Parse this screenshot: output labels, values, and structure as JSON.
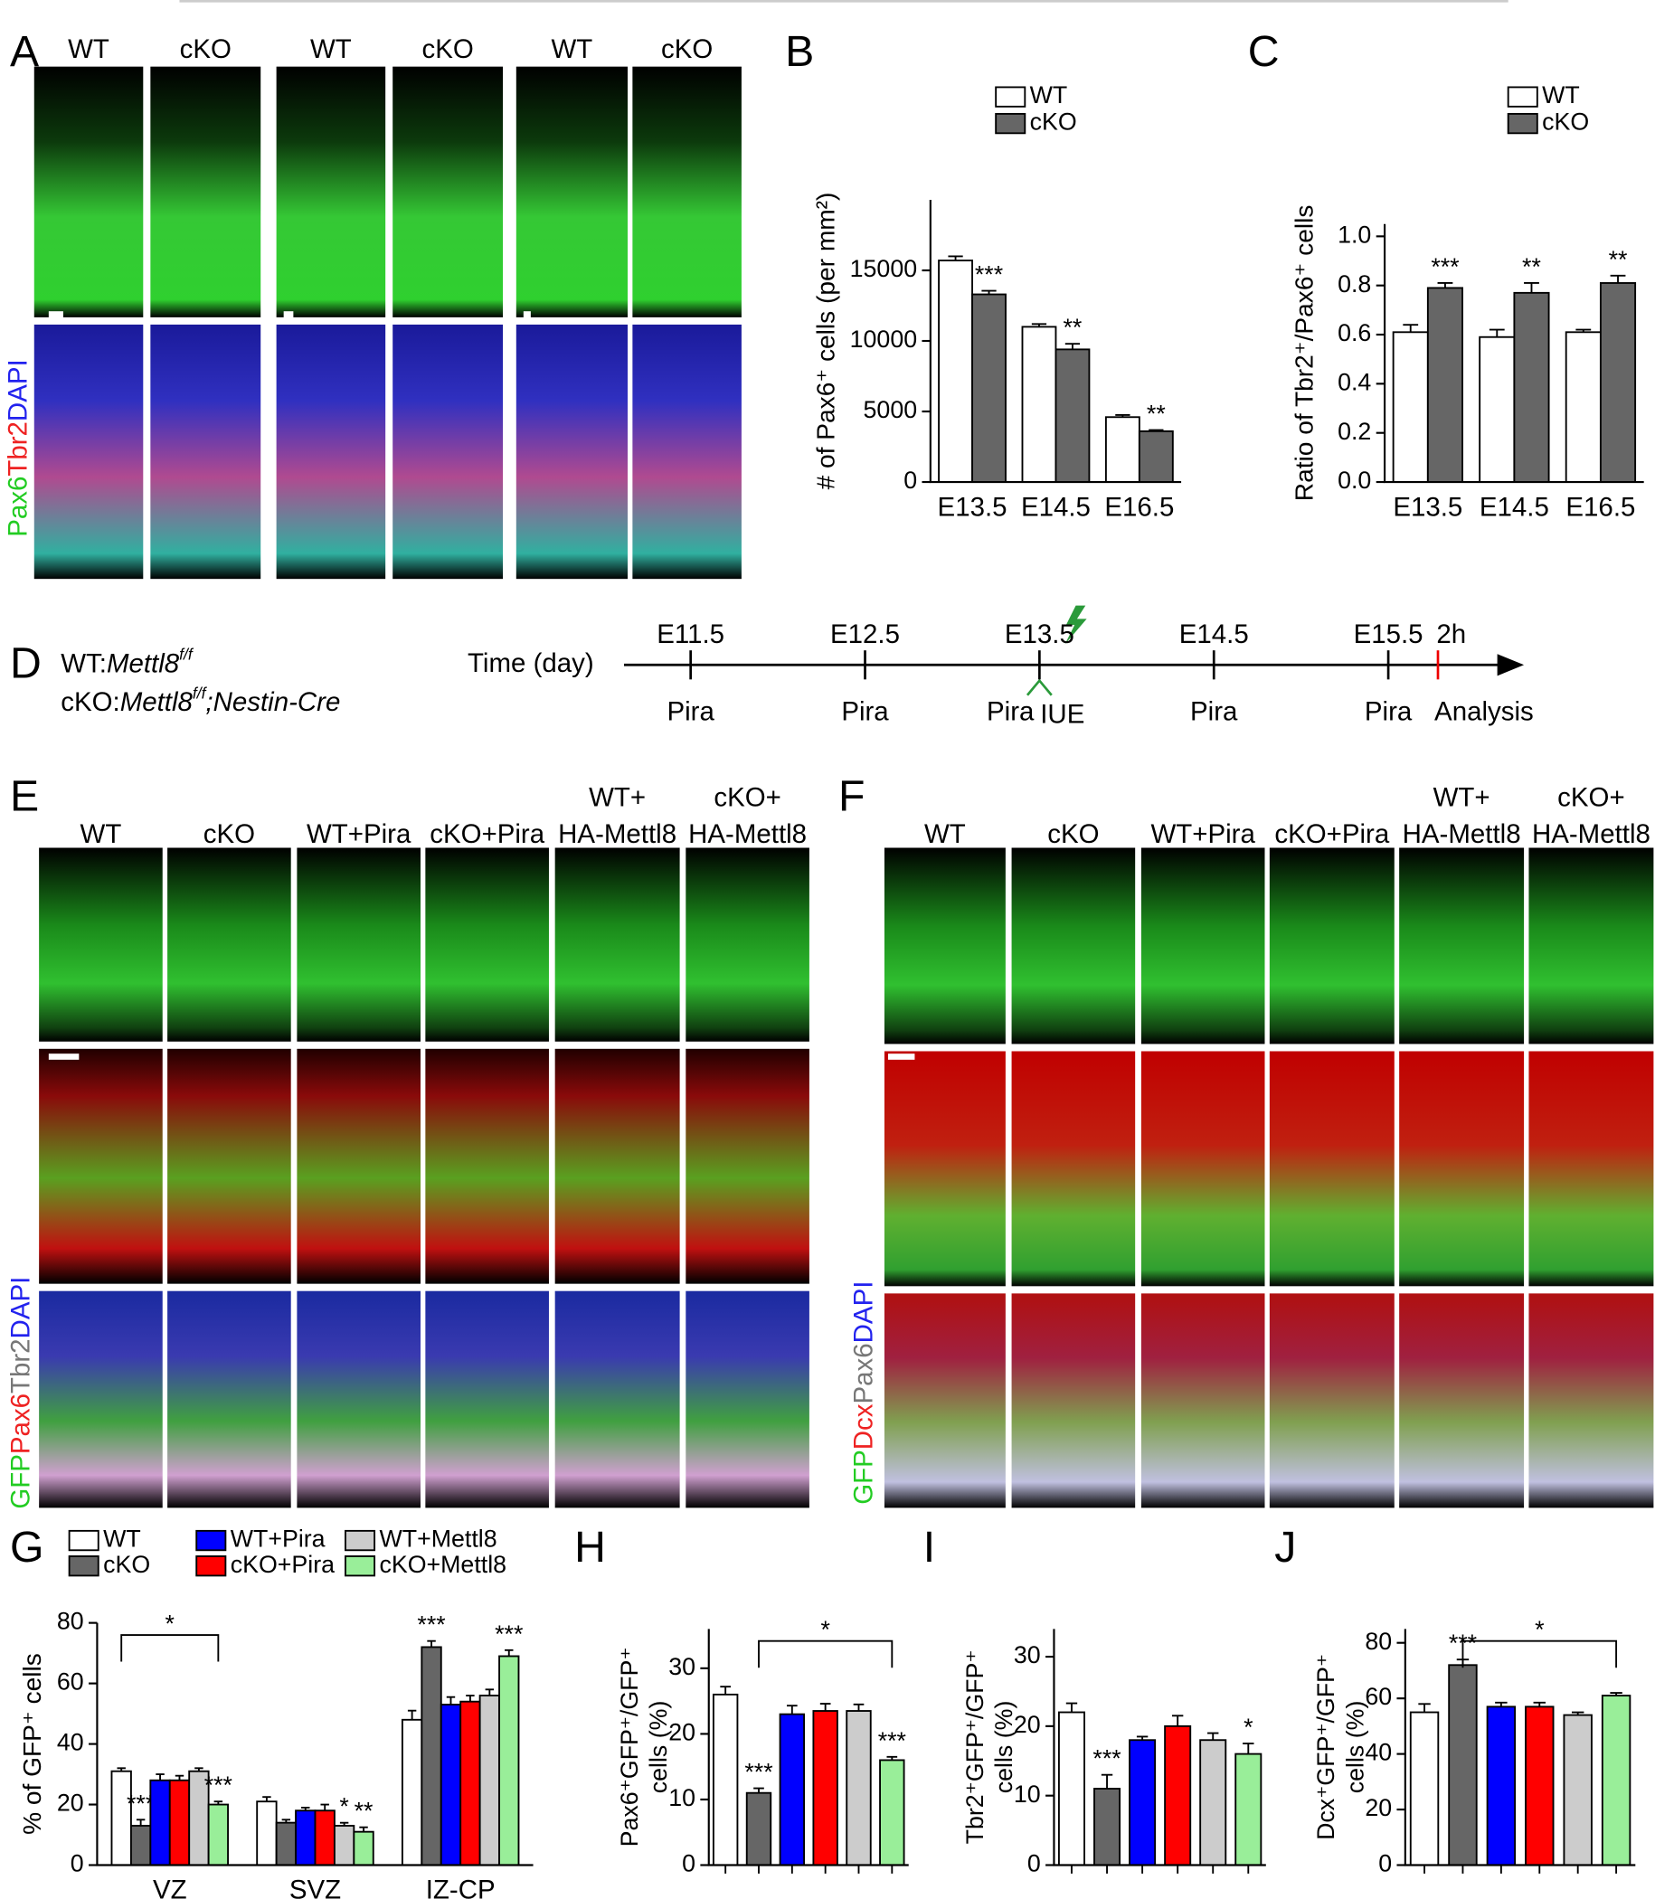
{
  "panel_labels": [
    "A",
    "B",
    "C",
    "D",
    "E",
    "F",
    "G",
    "H",
    "I",
    "J"
  ],
  "panel_a": {
    "columns": [
      "WT",
      "cKO",
      "WT",
      "cKO",
      "WT",
      "cKO"
    ],
    "stain": [
      "Pax6",
      "Tbr2",
      "DAPI"
    ]
  },
  "panel_d": {
    "wt": {
      "prefix": "WT:",
      "gene": "Mettl8",
      "allele": "f/f"
    },
    "cko": {
      "prefix": "cKO:",
      "gene": "Mettl8",
      "allele": "f/f",
      "suffix": ";Nestin-Cre"
    },
    "axis_label": "Time (day)",
    "days": [
      "E11.5",
      "E12.5",
      "E13.5",
      "E14.5",
      "E15.5"
    ],
    "treatment": [
      "Pira",
      "Pira",
      "Pira",
      "Pira",
      "Pira"
    ],
    "electroporation": "IUE",
    "harvest": "2h",
    "analysis": "Analysis"
  },
  "panel_e": {
    "columns": [
      [
        "WT"
      ],
      [
        "cKO"
      ],
      [
        "WT+Pira"
      ],
      [
        "cKO+Pira"
      ],
      [
        "WT+",
        "HA-Mettl8"
      ],
      [
        "cKO+",
        "HA-Mettl8"
      ]
    ],
    "stain": [
      "GFP",
      "Pax6",
      "Tbr2",
      "DAPI"
    ]
  },
  "panel_f": {
    "columns": [
      [
        "WT"
      ],
      [
        "cKO"
      ],
      [
        "WT+Pira"
      ],
      [
        "cKO+Pira"
      ],
      [
        "WT+",
        "HA-Mettl8"
      ],
      [
        "cKO+",
        "HA-Mettl8"
      ]
    ],
    "stain": [
      "GFP",
      "Dcx",
      "Pax6",
      "DAPI"
    ]
  },
  "chart_data": [
    {
      "type": "bar",
      "ylabel": "# of Pax6⁺ cells (per mm²)",
      "categories": [
        "E13.5",
        "E14.5",
        "E16.5"
      ],
      "series": [
        {
          "name": "WT",
          "color": "#ffffff",
          "values": [
            15700,
            11000,
            4600
          ],
          "errors": [
            300,
            200,
            150
          ],
          "labels": [
            null,
            null,
            null
          ]
        },
        {
          "name": "cKO",
          "color": "#666666",
          "values": [
            13300,
            9400,
            3600
          ],
          "errors": [
            250,
            400,
            80
          ],
          "labels": [
            "***",
            "**",
            "**"
          ]
        }
      ],
      "ylim": [
        0,
        20000
      ],
      "yticks": [
        0,
        5000,
        10000,
        15000
      ]
    },
    {
      "type": "bar",
      "ylabel": "Ratio of Tbr2⁺/Pax6⁺ cells",
      "categories": [
        "E13.5",
        "E14.5",
        "E16.5"
      ],
      "series": [
        {
          "name": "WT",
          "color": "#ffffff",
          "values": [
            0.61,
            0.59,
            0.61
          ],
          "errors": [
            0.03,
            0.03,
            0.01
          ],
          "labels": [
            null,
            null,
            null
          ]
        },
        {
          "name": "cKO",
          "color": "#666666",
          "values": [
            0.79,
            0.77,
            0.81
          ],
          "errors": [
            0.02,
            0.04,
            0.03
          ],
          "labels": [
            "***",
            "**",
            "**"
          ]
        }
      ],
      "ylim": [
        0,
        1.05
      ],
      "yticks": [
        {
          "value": 0,
          "label": "0.0"
        },
        0.2,
        0.4,
        0.6,
        0.8,
        {
          "value": 1,
          "label": "1.0"
        }
      ]
    },
    {
      "type": "bar",
      "ylabel": "% of GFP⁺ cells",
      "categories": [
        "VZ",
        "SVZ",
        "IZ-CP"
      ],
      "series": [
        {
          "name": "WT",
          "color": "#ffffff",
          "values": [
            31,
            21,
            48
          ],
          "errors": [
            1,
            1.5,
            3
          ],
          "labels": [
            null,
            null,
            null
          ]
        },
        {
          "name": "cKO",
          "color": "#666666",
          "values": [
            13,
            14,
            72
          ],
          "errors": [
            2,
            1,
            2
          ],
          "labels": [
            "***",
            null,
            "***"
          ]
        },
        {
          "name": "WT+Pira",
          "color": "#0000ff",
          "values": [
            28,
            18,
            53
          ],
          "errors": [
            2,
            1,
            2.5
          ],
          "labels": [
            null,
            null,
            null
          ]
        },
        {
          "name": "cKO+Pira",
          "color": "#ff0000",
          "values": [
            28,
            18,
            54
          ],
          "errors": [
            1.5,
            2,
            2
          ],
          "labels": [
            null,
            null,
            null
          ]
        },
        {
          "name": "WT+Mettl8",
          "color": "#cccccc",
          "values": [
            31,
            13,
            56
          ],
          "errors": [
            1,
            1,
            2
          ],
          "labels": [
            null,
            "*",
            null
          ]
        },
        {
          "name": "cKO+Mettl8",
          "color": "#99ee99",
          "values": [
            20,
            11,
            69
          ],
          "errors": [
            1,
            1.5,
            2
          ],
          "labels": [
            "***",
            "**",
            "***"
          ]
        }
      ],
      "bracket": "*",
      "ylim": [
        0,
        80
      ],
      "yticks": [
        0,
        20,
        40,
        60,
        80
      ]
    },
    {
      "type": "bar",
      "ylabel": [
        "Pax6⁺GFP⁺/GFP⁺",
        "cells (%)"
      ],
      "categories": [
        null,
        null,
        null,
        null,
        null,
        null
      ],
      "values": [
        26,
        11,
        23,
        23.5,
        23.5,
        16
      ],
      "errors": [
        1.2,
        0.7,
        1.3,
        1.1,
        1,
        0.5
      ],
      "labels": [
        null,
        "***",
        null,
        null,
        null,
        "***"
      ],
      "colors": [
        "#ffffff",
        "#666666",
        "#0000ff",
        "#ff0000",
        "#cccccc",
        "#99ee99"
      ],
      "bracket": "*",
      "ylim": [
        0,
        36
      ],
      "yticks": [
        0,
        10,
        20,
        30
      ]
    },
    {
      "type": "bar",
      "ylabel": [
        "Tbr2⁺GFP⁺/GFP⁺",
        "cells (%)"
      ],
      "categories": [
        null,
        null,
        null,
        null,
        null,
        null
      ],
      "values": [
        22,
        11,
        18,
        20,
        18,
        16
      ],
      "errors": [
        1.3,
        2,
        0.5,
        1.5,
        1,
        1.5
      ],
      "labels": [
        null,
        "***",
        null,
        null,
        null,
        "*"
      ],
      "colors": [
        "#ffffff",
        "#666666",
        "#0000ff",
        "#ff0000",
        "#cccccc",
        "#99ee99"
      ],
      "ylim": [
        0,
        34
      ],
      "yticks": [
        0,
        10,
        20,
        30
      ]
    },
    {
      "type": "bar",
      "ylabel": [
        "Dcx⁺GFP⁺/GFP⁺",
        "cells (%)"
      ],
      "categories": [
        null,
        null,
        null,
        null,
        null,
        null
      ],
      "values": [
        55,
        72,
        57,
        57,
        54,
        61
      ],
      "errors": [
        3,
        2,
        1.5,
        1.5,
        1,
        1
      ],
      "labels": [
        null,
        "***",
        null,
        null,
        null,
        null
      ],
      "colors": [
        "#ffffff",
        "#666666",
        "#0000ff",
        "#ff0000",
        "#cccccc",
        "#99ee99"
      ],
      "bracket": "*",
      "ylim": [
        0,
        85
      ],
      "yticks": [
        0,
        20,
        40,
        60,
        80
      ]
    }
  ]
}
